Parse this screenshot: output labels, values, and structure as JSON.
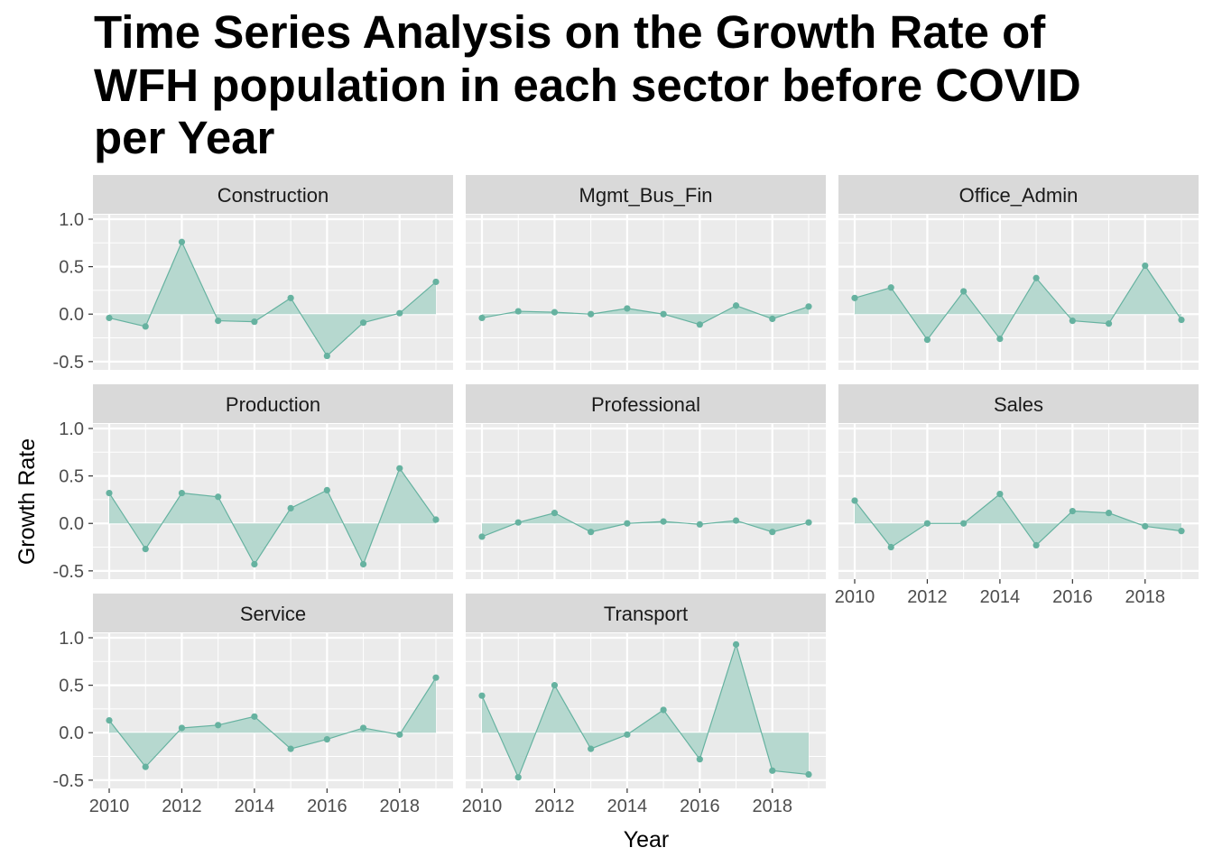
{
  "chart_data": {
    "type": "area",
    "title_lines": [
      "Time Series Analysis on the Growth Rate of",
      "WFH population in each sector before COVID",
      "per Year"
    ],
    "xlabel": "Year",
    "ylabel": "Growth Rate",
    "x": [
      2010,
      2011,
      2012,
      2013,
      2014,
      2015,
      2016,
      2017,
      2018,
      2019
    ],
    "x_ticks": [
      2010,
      2012,
      2014,
      2016,
      2018
    ],
    "x_tick_labels": [
      "2010",
      "2012",
      "2014",
      "2016",
      "2018"
    ],
    "xlim": [
      2009.55,
      2019.45
    ],
    "y_ticks": [
      -0.5,
      0,
      0.5,
      1
    ],
    "y_tick_labels": [
      "-0.5",
      "0.0",
      "0.5",
      "1.0"
    ],
    "ylim": [
      -0.53,
      1.0
    ],
    "facet_layout": {
      "columns": 3,
      "rows": 3
    },
    "colors": {
      "line": "#66b2a0",
      "fill": "#b6d8cf",
      "panel_bg": "#ebebeb",
      "strip_bg": "#d9d9d9",
      "grid": "#ffffff"
    },
    "series": [
      {
        "name": "Construction",
        "values": [
          -0.04,
          -0.13,
          0.76,
          -0.07,
          -0.08,
          0.17,
          -0.44,
          -0.09,
          0.01,
          0.34
        ]
      },
      {
        "name": "Mgmt_Bus_Fin",
        "values": [
          -0.04,
          0.03,
          0.02,
          0.0,
          0.06,
          0.0,
          -0.11,
          0.09,
          -0.05,
          0.08
        ]
      },
      {
        "name": "Office_Admin",
        "values": [
          0.17,
          0.28,
          -0.27,
          0.24,
          -0.26,
          0.38,
          -0.07,
          -0.1,
          0.51,
          -0.06
        ]
      },
      {
        "name": "Production",
        "values": [
          0.32,
          -0.27,
          0.32,
          0.28,
          -0.43,
          0.16,
          0.35,
          -0.43,
          0.58,
          0.04
        ]
      },
      {
        "name": "Professional",
        "values": [
          -0.14,
          0.01,
          0.11,
          -0.09,
          0.0,
          0.02,
          -0.01,
          0.03,
          -0.09,
          0.01
        ]
      },
      {
        "name": "Sales",
        "values": [
          0.24,
          -0.25,
          0.0,
          0.0,
          0.31,
          -0.23,
          0.13,
          0.11,
          -0.03,
          -0.08
        ]
      },
      {
        "name": "Service",
        "values": [
          0.13,
          -0.36,
          0.05,
          0.08,
          0.17,
          -0.17,
          -0.07,
          0.05,
          -0.02,
          0.58
        ]
      },
      {
        "name": "Transport",
        "values": [
          0.39,
          -0.47,
          0.5,
          -0.17,
          -0.02,
          0.24,
          -0.28,
          0.93,
          -0.4,
          -0.44
        ]
      }
    ]
  }
}
